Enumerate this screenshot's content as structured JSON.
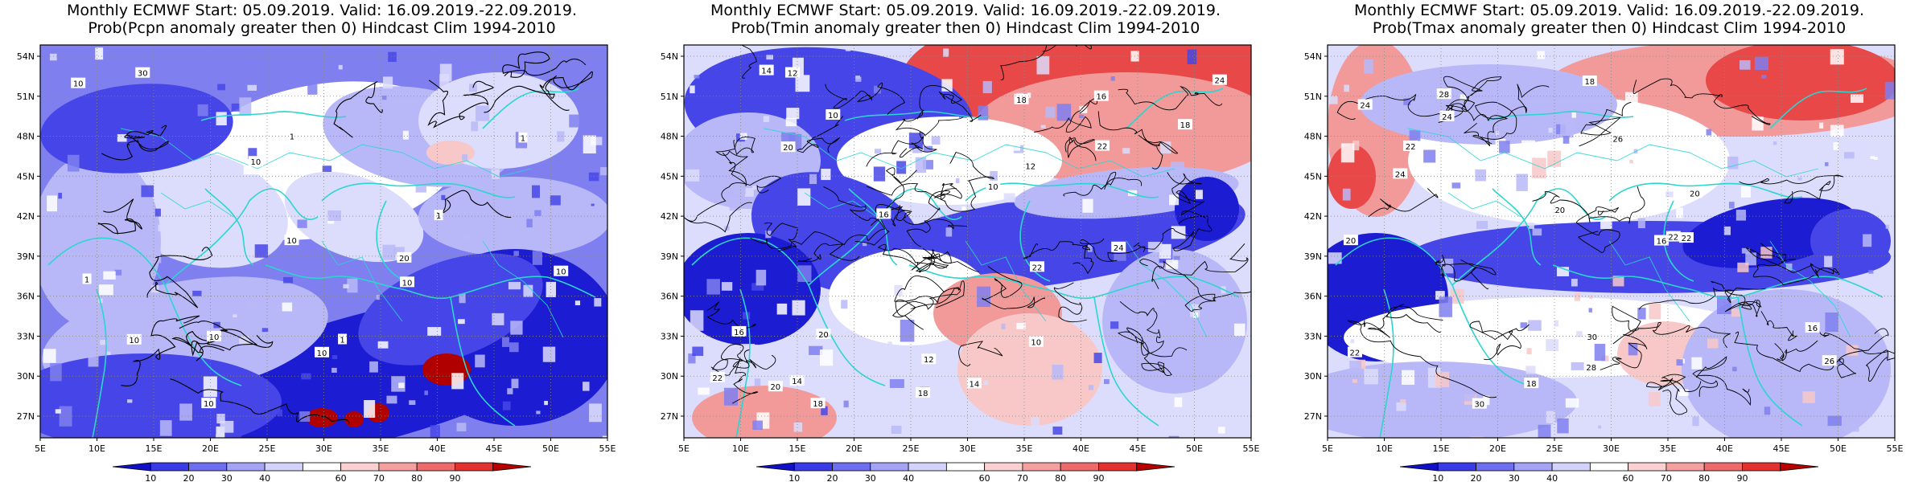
{
  "panels": [
    {
      "id": "pcpn",
      "title_line1": "Monthly ECMWF Start: 05.09.2019. Valid: 16.09.2019.-22.09.2019.",
      "title_line2": "Prob(Pcpn anomaly greater then 0) Hindcast Clim 1994-2010",
      "contour_labels": [
        "10",
        "10",
        "10",
        "10",
        "10",
        "10",
        "20",
        "10",
        "10",
        "10",
        "1",
        "1",
        "1",
        "1",
        "1",
        "30"
      ]
    },
    {
      "id": "tmin",
      "title_line1": "Monthly ECMWF Start: 05.09.2019. Valid: 16.09.2019.-22.09.2019.",
      "title_line2": "Prob(Tmin anomaly greater then 0) Hindcast Clim 1994-2010",
      "contour_labels": [
        "10",
        "12",
        "12",
        "14",
        "16",
        "18",
        "20",
        "22",
        "24",
        "18",
        "22",
        "20",
        "18",
        "10",
        "16",
        "12",
        "14",
        "20",
        "24",
        "22",
        "18",
        "10",
        "16",
        "14"
      ]
    },
    {
      "id": "tmax",
      "title_line1": "Monthly ECMWF Start: 05.09.2019. Valid: 16.09.2019.-22.09.2019.",
      "title_line2": "Prob(Tmax anomaly greater then 0) Hindcast Clim 1994-2010",
      "contour_labels": [
        "16",
        "18",
        "20",
        "22",
        "18",
        "20",
        "24",
        "22",
        "28",
        "30",
        "24",
        "26",
        "28",
        "22",
        "16",
        "20",
        "24",
        "26",
        "30",
        "22"
      ]
    }
  ],
  "axes": {
    "x_ticks": [
      "5E",
      "10E",
      "15E",
      "20E",
      "25E",
      "30E",
      "35E",
      "40E",
      "45E",
      "50E",
      "55E"
    ],
    "y_ticks": [
      "27N",
      "30N",
      "33N",
      "36N",
      "39N",
      "42N",
      "45N",
      "48N",
      "51N",
      "54N"
    ]
  },
  "colorbar": {
    "labels": [
      "10",
      "20",
      "30",
      "40",
      "60",
      "70",
      "80",
      "90"
    ],
    "colors": [
      "#1010c8",
      "#3a3ae6",
      "#6e6ef0",
      "#a4a4f6",
      "#d2d2fb",
      "#ffffff",
      "#fbd0d0",
      "#f5a0a0",
      "#ef6a6a",
      "#e53030",
      "#b80000"
    ]
  },
  "colors": {
    "deep_blue": "#1c1cd2",
    "blue": "#4646e8",
    "mid_blue": "#7f7ff0",
    "light_blue": "#b8b8f8",
    "pale_blue": "#dcdcfc",
    "white": "#ffffff",
    "pale_red": "#f8c8c8",
    "light_red": "#f29a9a",
    "red": "#e84848",
    "strong_red": "#e01e1e",
    "dark_red": "#b00000",
    "coast": "#2ad6d0"
  }
}
